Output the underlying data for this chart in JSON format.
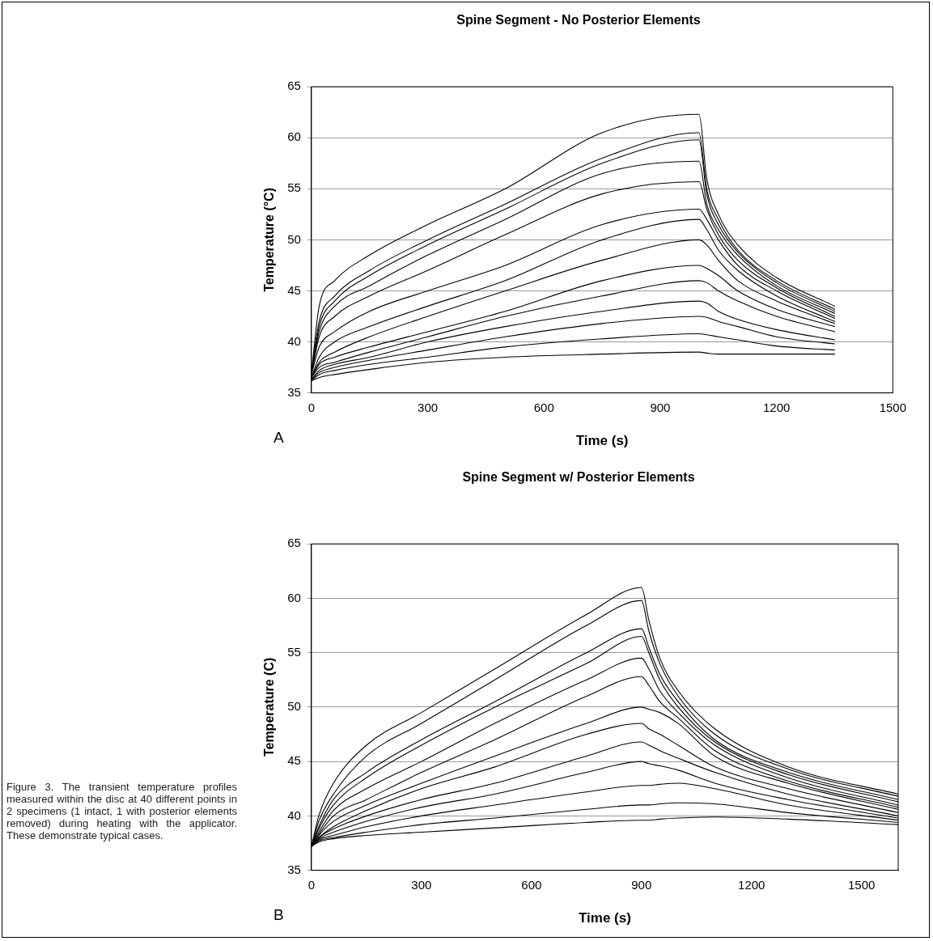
{
  "chart_data": [
    {
      "type": "line",
      "title": "Spine Segment - No Posterior Elements",
      "xlabel": "Time (s)",
      "ylabel": "Temperature (°C)",
      "annotations": [
        "A"
      ],
      "x": [
        0,
        20,
        60,
        150,
        300,
        500,
        750,
        1000,
        1020,
        1050,
        1100,
        1200,
        1350
      ],
      "series": [
        {
          "color": "#000000",
          "values": [
            37,
            43.5,
            46,
            48.5,
            51.5,
            55,
            60.5,
            62.3,
            56,
            52.5,
            49.5,
            46.3,
            43.5
          ]
        },
        {
          "color": "#000000",
          "values": [
            37,
            42,
            44.5,
            47,
            50,
            53.5,
            58,
            60.5,
            55,
            52,
            49,
            46,
            43.2
          ]
        },
        {
          "color": "#000000",
          "values": [
            37,
            41.5,
            44,
            46.5,
            49.5,
            53,
            57.5,
            59.8,
            54.5,
            51.5,
            48.8,
            45.8,
            43
          ]
        },
        {
          "color": "#000000",
          "values": [
            37,
            41,
            43.5,
            45.5,
            48.5,
            52,
            56.5,
            57.7,
            53.5,
            51,
            48.5,
            45.5,
            42.8
          ]
        },
        {
          "color": "#000000",
          "values": [
            36.8,
            40.5,
            42.5,
            44.5,
            47,
            50.5,
            54.5,
            55.7,
            53,
            50.5,
            48,
            45.3,
            42.5
          ]
        },
        {
          "color": "#000000",
          "values": [
            36.8,
            39.5,
            41,
            43,
            45,
            47.5,
            51.5,
            53,
            52,
            50,
            47.5,
            45,
            42.3
          ]
        },
        {
          "color": "#000000",
          "values": [
            36.5,
            38.5,
            40,
            41.5,
            43.5,
            46,
            50,
            52,
            51,
            49,
            47,
            44.5,
            42
          ]
        },
        {
          "color": "#000000",
          "values": [
            36.5,
            38,
            39,
            40.5,
            42.5,
            45,
            48,
            50,
            49.5,
            48,
            46,
            44,
            41.8
          ]
        },
        {
          "color": "#000000",
          "values": [
            36.5,
            37.8,
            38.5,
            39.5,
            41,
            43,
            46,
            47.5,
            47.2,
            46.5,
            45,
            43.2,
            41.5
          ]
        },
        {
          "color": "#000000",
          "values": [
            36.5,
            37.5,
            38,
            39,
            40.5,
            42.5,
            44.5,
            46,
            45.8,
            45,
            44,
            42.5,
            41
          ]
        },
        {
          "color": "#000000",
          "values": [
            36.3,
            37.2,
            37.8,
            38.5,
            40,
            41.5,
            43,
            44,
            43.8,
            43,
            42.2,
            41.2,
            40.2
          ]
        },
        {
          "color": "#000000",
          "values": [
            36.3,
            37,
            37.5,
            38.2,
            39.2,
            40.5,
            41.8,
            42.5,
            42.4,
            42,
            41.5,
            40.5,
            39.8
          ]
        },
        {
          "color": "#000000",
          "values": [
            36.2,
            36.8,
            37.2,
            37.8,
            38.5,
            39.5,
            40.3,
            40.8,
            40.7,
            40.5,
            40.2,
            39.6,
            39.2
          ]
        },
        {
          "color": "#000000",
          "values": [
            36.2,
            36.5,
            36.8,
            37.3,
            38,
            38.5,
            38.8,
            39,
            38.9,
            38.8,
            38.8,
            38.8,
            38.8
          ]
        }
      ],
      "xlim": [
        0,
        1500
      ],
      "xticks": [
        0,
        300,
        600,
        900,
        1200,
        1500
      ],
      "ylim": [
        35,
        65
      ],
      "yticks": [
        35,
        40,
        45,
        50,
        55,
        60,
        65
      ],
      "grid": "y",
      "legend": false,
      "marker": "none",
      "line_style": "solid"
    },
    {
      "type": "line",
      "title": "Spine Segment w/ Posterior Elements",
      "xlabel": "Time (s)",
      "ylabel": "Temperature (C)",
      "annotations": [
        "B",
        "Figure 3. The transient temperature profiles measured within the disc at 40 different points in 2 specimens (1 intact, 1 with posterior elements removed) during heating with the applicator. These demonstrate typical cases."
      ],
      "x": [
        0,
        20,
        60,
        150,
        300,
        500,
        750,
        900,
        920,
        950,
        1000,
        1100,
        1300,
        1600
      ],
      "series": [
        {
          "color": "#000000",
          "values": [
            37.2,
            40,
            43,
            46.5,
            49.5,
            53.5,
            58.5,
            61,
            58,
            54.5,
            51.5,
            48,
            44.5,
            42
          ]
        },
        {
          "color": "#000000",
          "values": [
            37.2,
            39.5,
            42,
            45.5,
            48.5,
            52.5,
            57.5,
            59.8,
            57,
            54,
            51,
            47.5,
            44.3,
            41.8
          ]
        },
        {
          "color": "#000000",
          "values": [
            37.2,
            39,
            41.5,
            44,
            47,
            50.5,
            55,
            57.2,
            55.5,
            53,
            50.5,
            47,
            44,
            41.5
          ]
        },
        {
          "color": "#000000",
          "values": [
            37.2,
            38.8,
            41,
            43.5,
            46.5,
            50,
            54,
            56.5,
            55,
            52.5,
            50,
            46.8,
            43.8,
            41.3
          ]
        },
        {
          "color": "#000000",
          "values": [
            37.2,
            38.5,
            40.5,
            42.5,
            45,
            48.5,
            52.5,
            54.5,
            53.5,
            51.5,
            49.5,
            46.5,
            43.5,
            41
          ]
        },
        {
          "color": "#000000",
          "values": [
            37.2,
            38.3,
            40,
            41.5,
            44,
            47,
            51,
            52.8,
            52,
            50.5,
            49,
            46,
            43.2,
            40.8
          ]
        },
        {
          "color": "#000000",
          "values": [
            37.2,
            38.2,
            39.5,
            41,
            43,
            45.5,
            48.5,
            50,
            49.8,
            49.5,
            48.5,
            45.5,
            43,
            40.6
          ]
        },
        {
          "color": "#000000",
          "values": [
            37.2,
            38,
            39,
            40.5,
            42.5,
            44.5,
            47.5,
            48.5,
            48,
            47.5,
            46.5,
            44.5,
            42.5,
            40.3
          ]
        },
        {
          "color": "#000000",
          "values": [
            37.2,
            38,
            38.8,
            40,
            41.5,
            43,
            45.5,
            46.8,
            46.5,
            46,
            45.3,
            44,
            42,
            40
          ]
        },
        {
          "color": "#000000",
          "values": [
            37.2,
            37.9,
            38.5,
            39.5,
            40.8,
            42,
            44,
            45,
            44.8,
            44.6,
            44.2,
            43,
            41.5,
            39.8
          ]
        },
        {
          "color": "#000000",
          "values": [
            37.2,
            37.8,
            38.2,
            39,
            40,
            41,
            42.2,
            42.8,
            42.8,
            42.9,
            43,
            42.5,
            41,
            39.6
          ]
        },
        {
          "color": "#000000",
          "values": [
            37.2,
            37.7,
            38,
            38.5,
            39.2,
            39.8,
            40.6,
            41,
            41,
            41.1,
            41.2,
            41.1,
            40.3,
            39.4
          ]
        },
        {
          "color": "#000000",
          "values": [
            37.2,
            37.6,
            37.9,
            38.2,
            38.5,
            38.9,
            39.4,
            39.6,
            39.6,
            39.7,
            39.8,
            39.9,
            39.7,
            39.2
          ]
        }
      ],
      "xlim": [
        0,
        1600
      ],
      "xticks": [
        0,
        300,
        600,
        900,
        1200,
        1500
      ],
      "ylim": [
        35,
        65
      ],
      "yticks": [
        35,
        40,
        45,
        50,
        55,
        60,
        65
      ],
      "grid": "y",
      "legend": false,
      "marker": "none",
      "line_style": "solid"
    }
  ]
}
